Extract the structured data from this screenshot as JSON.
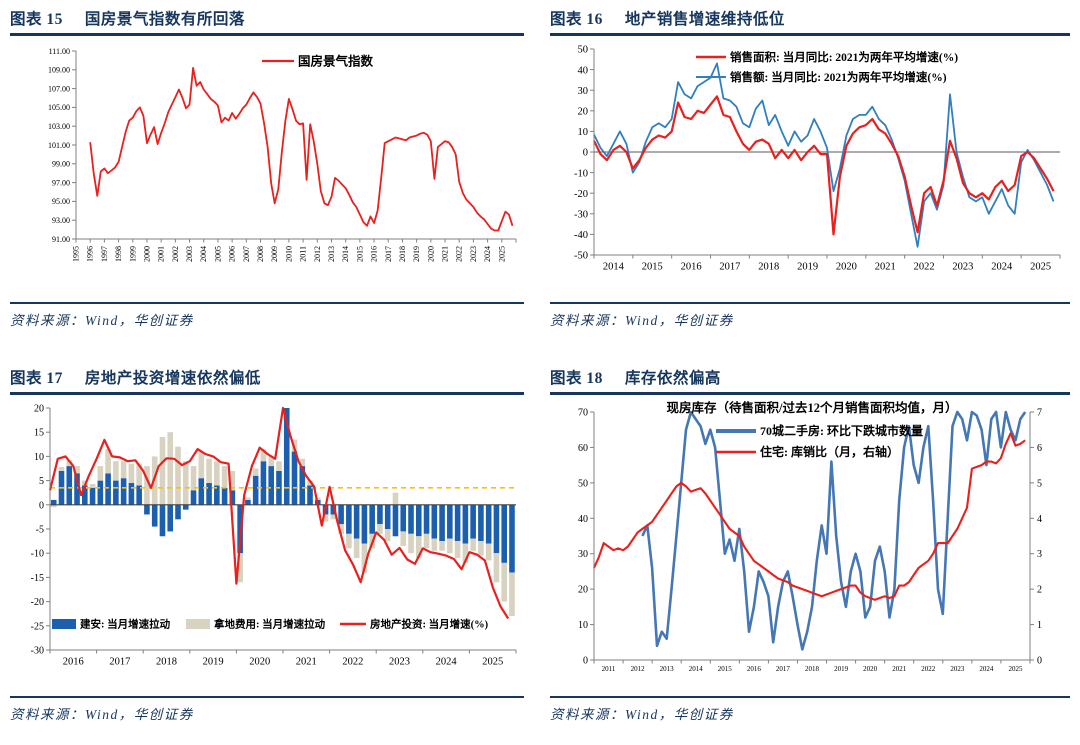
{
  "page_background": "#ffffff",
  "colors": {
    "navy": "#17365d",
    "red_line": "#e8201e",
    "sales_blue": "#2f7fc1",
    "bar_blue": "#1c5fae",
    "bar_beige": "#d8d2c0",
    "dash_orange": "#ffc000",
    "inventory_blue": "#4577b4",
    "axis_gray": "#808080",
    "zero_gray": "#595959"
  },
  "figures": [
    {
      "tag": "图表 15",
      "title": "国房景气指数有所回落",
      "source": "资料来源：Wind，华创证券"
    },
    {
      "tag": "图表 16",
      "title": "地产销售增速维持低位",
      "source": "资料来源：Wind，华创证券"
    },
    {
      "tag": "图表 17",
      "title": "房地产投资增速依然偏低",
      "source": "资料来源：Wind，华创证券"
    },
    {
      "tag": "图表 18",
      "title": "库存依然偏高",
      "source": "资料来源：Wind，华创证券"
    }
  ],
  "chart_data": [
    {
      "type": "line",
      "title": "国房景气指数有所回落",
      "xlabel": "",
      "ylabel": "",
      "ylim": [
        91,
        111
      ],
      "ytick_step": 2,
      "ytick_decimals": 2,
      "xlim": [
        1995,
        2026
      ],
      "xticks": [
        1995,
        1996,
        1997,
        1998,
        1999,
        2000,
        2001,
        2002,
        2003,
        2004,
        2005,
        2006,
        2007,
        2008,
        2009,
        2010,
        2011,
        2012,
        2013,
        2014,
        2015,
        2016,
        2017,
        2018,
        2019,
        2020,
        2021,
        2022,
        2023,
        2024,
        2025
      ],
      "x_start": 1996.0,
      "x_step": 0.25,
      "legend": [
        {
          "label": "国房景气指数",
          "color": "#e8201e"
        }
      ],
      "series": [
        {
          "name": "国房景气指数",
          "color": "#e8201e",
          "width": 1.8,
          "values": [
            101.3,
            98.0,
            95.6,
            98.2,
            98.5,
            98.0,
            98.3,
            98.6,
            99.2,
            100.8,
            102.4,
            103.6,
            103.9,
            104.6,
            105.0,
            104.1,
            101.2,
            102.1,
            102.9,
            101.1,
            102.3,
            103.3,
            104.5,
            105.3,
            106.1,
            106.9,
            106.0,
            104.9,
            105.3,
            109.2,
            107.3,
            107.7,
            106.9,
            106.4,
            105.9,
            105.6,
            105.2,
            103.4,
            103.9,
            103.6,
            104.4,
            103.8,
            104.3,
            104.9,
            105.3,
            106.0,
            106.6,
            106.1,
            105.4,
            103.3,
            100.8,
            96.9,
            94.8,
            96.3,
            100.2,
            103.6,
            105.9,
            104.8,
            103.6,
            103.2,
            103.3,
            97.3,
            103.2,
            101.4,
            99.0,
            96.1,
            94.8,
            94.6,
            95.5,
            97.5,
            97.2,
            96.8,
            96.4,
            95.7,
            94.9,
            94.4,
            93.6,
            92.8,
            92.4,
            93.4,
            92.7,
            94.0,
            97.5,
            101.2,
            101.4,
            101.6,
            101.8,
            101.7,
            101.6,
            101.5,
            101.8,
            101.9,
            102.0,
            102.2,
            102.3,
            102.1,
            101.4,
            97.4,
            100.8,
            101.1,
            101.4,
            101.3,
            100.8,
            100.0,
            97.1,
            95.9,
            95.2,
            94.8,
            94.4,
            93.8,
            93.4,
            93.1,
            92.6,
            92.1,
            91.9,
            91.9,
            92.9,
            93.9,
            93.6,
            92.4
          ]
        }
      ]
    },
    {
      "type": "line",
      "title": "地产销售增速维持低位",
      "ylim": [
        -50,
        50
      ],
      "ytick_step": 10,
      "ytick_decimals": 0,
      "xlim": [
        2014,
        2026
      ],
      "xticks": [
        2014,
        2015,
        2016,
        2017,
        2018,
        2019,
        2020,
        2021,
        2022,
        2023,
        2024,
        2025
      ],
      "x_start": 2014.0,
      "x_step": 0.16667,
      "zero_line": true,
      "legend": [
        {
          "label": "销售面积: 当月同比: 2021为两年平均增速(%)",
          "color": "#e8201e"
        },
        {
          "label": "销售额: 当月同比: 2021为两年平均增速(%)",
          "color": "#2f7fc1"
        }
      ],
      "series": [
        {
          "name": "销售面积: 当月同比: 2021为两年平均增速(%)",
          "color": "#e8201e",
          "width": 2.2,
          "values": [
            5.5,
            -1,
            -4,
            1,
            3,
            0,
            -8,
            -4,
            2,
            6,
            8,
            7,
            10,
            24,
            17,
            16,
            20,
            19,
            23,
            27,
            18,
            17,
            10,
            4,
            1,
            5,
            6,
            4,
            -3,
            1,
            -3,
            1,
            -4,
            0,
            3,
            -1,
            -1,
            -40,
            -12,
            3,
            9,
            12,
            13,
            16,
            11,
            9,
            4,
            -2,
            -12,
            -26,
            -39,
            -20,
            -17,
            -26,
            -14,
            5.5,
            -3,
            -15,
            -20,
            -22,
            -20,
            -23,
            -17,
            -14,
            -19,
            -16,
            -2,
            0,
            -3,
            -8,
            -13,
            -19
          ]
        },
        {
          "name": "销售额: 当月同比: 2021为两年平均增速(%)",
          "color": "#2f7fc1",
          "width": 1.8,
          "values": [
            8.5,
            2,
            -2,
            4,
            10,
            4,
            -10,
            -5,
            5,
            12,
            14,
            12,
            16,
            34,
            28,
            26,
            32,
            34,
            36,
            43,
            26,
            25,
            22,
            14,
            12,
            21,
            25,
            13,
            18,
            10,
            3,
            10,
            5,
            8,
            16,
            10,
            2,
            -19,
            -8,
            8,
            16,
            18,
            18,
            22,
            16,
            13,
            6,
            -3,
            -14,
            -30,
            -46,
            -24,
            -20,
            -28,
            -16,
            28,
            0,
            -12,
            -22,
            -24,
            -22,
            -30,
            -24,
            -18,
            -26,
            -30,
            -5,
            1,
            -4,
            -10,
            -16,
            -24
          ]
        }
      ]
    },
    {
      "type": "bar+line",
      "title": "房地产投资增速依然偏低",
      "ylim": [
        -30,
        20
      ],
      "ytick_step": 5,
      "ytick_decimals": 0,
      "xlim": [
        2016,
        2026
      ],
      "xticks": [
        2016,
        2017,
        2018,
        2019,
        2020,
        2021,
        2022,
        2023,
        2024,
        2025
      ],
      "x_start": 2016.0,
      "x_step": 0.16667,
      "zero_line": true,
      "dash_line": {
        "value": 3.5,
        "color": "#ffc000"
      },
      "legend": [
        {
          "label": "建安: 当月增速拉动",
          "color": "#1c5fae",
          "swatch": "rect"
        },
        {
          "label": "拿地费用: 当月增速拉动",
          "color": "#d8d2c0",
          "swatch": "rect"
        },
        {
          "label": "房地产投资: 当月增速(%)",
          "color": "#e8201e",
          "swatch": "line"
        }
      ],
      "bars": [
        {
          "name": "建安: 当月增速拉动",
          "color": "#1c5fae",
          "values": [
            1,
            7,
            8,
            6.5,
            4,
            3.5,
            5,
            6.5,
            5,
            5.5,
            4.5,
            4,
            -2,
            -4.5,
            -6.5,
            -5.5,
            -3,
            -1,
            3,
            5.5,
            4.5,
            4,
            3.5,
            3,
            -10,
            1,
            6,
            9,
            8,
            7,
            20,
            11,
            8,
            4,
            1,
            -2,
            -2,
            -4,
            -6,
            -7,
            -8,
            -6,
            -4,
            -5,
            -6.5,
            -5.5,
            -6,
            -6.5,
            -6,
            -7,
            -7.5,
            -7,
            -7.5,
            -8,
            -7,
            -7.5,
            -8,
            -10,
            -12,
            -14
          ]
        },
        {
          "name": "拿地费用: 当月增速拉动",
          "color": "#d8d2c0",
          "values": [
            -0.5,
            0.8,
            1.2,
            1.5,
            1,
            0.8,
            3,
            5,
            4,
            3.5,
            4,
            4.5,
            8,
            10,
            14,
            15,
            12,
            9,
            5,
            5.5,
            5,
            5,
            4.5,
            4,
            -6,
            0.5,
            1.5,
            2.5,
            2,
            2,
            2,
            2.5,
            1.5,
            1,
            0.5,
            -1.5,
            -1,
            -2,
            -3,
            -4,
            -6,
            -3,
            -2,
            -2.5,
            2.5,
            -3,
            -4,
            -4.5,
            -3,
            -2.5,
            -2,
            -3,
            -3.5,
            -4,
            -2.5,
            -3,
            -3.5,
            -6,
            -8,
            -9
          ]
        }
      ],
      "series": [
        {
          "name": "房地产投资: 当月增速(%)",
          "color": "#e8201e",
          "width": 2.2,
          "values": [
            3,
            9.5,
            10,
            8,
            2,
            6,
            9.5,
            13.4,
            10,
            9.8,
            9,
            9.2,
            7,
            3.5,
            8,
            9.6,
            9.5,
            8.2,
            9,
            11.5,
            10.5,
            10,
            8.8,
            8.5,
            -16.3,
            2,
            8,
            11.8,
            10.5,
            9.5,
            21,
            14,
            9,
            5.9,
            3.8,
            -4.3,
            3.7,
            -3.5,
            -9.4,
            -12.3,
            -16,
            -10,
            -5.7,
            -7.2,
            -10.3,
            -8.9,
            -11.3,
            -12.2,
            -9,
            -9.8,
            -10.1,
            -10.5,
            -11.2,
            -13.3,
            -9.8,
            -10.3,
            -11.5,
            -17,
            -21,
            -23.5
          ]
        }
      ]
    },
    {
      "type": "dual-line",
      "title": "库存依然偏高",
      "inner_title": "现房库存（待售面积/过去12个月销售面积均值，月）",
      "ylim_left": [
        0,
        70
      ],
      "ytick_step_left": 10,
      "ylim_right": [
        0,
        7
      ],
      "ytick_step_right": 1,
      "xlim": [
        2011,
        2026
      ],
      "xticks": [
        2011,
        2012,
        2013,
        2014,
        2015,
        2016,
        2017,
        2018,
        2019,
        2020,
        2021,
        2022,
        2023,
        2024,
        2025
      ],
      "x_start": 2011.0,
      "x_step": 0.16667,
      "legend": [
        {
          "label": "70城二手房: 环比下跌城市数量",
          "color": "#4577b4",
          "thick": 4
        },
        {
          "label": "住宅: 库销比（月，右轴）",
          "color": "#e8201e",
          "thick": 2.5
        }
      ],
      "series": [
        {
          "name": "70城二手房: 环比下跌城市数量",
          "axis": "left",
          "color": "#4577b4",
          "width": 2.6,
          "values": [
            null,
            null,
            null,
            null,
            null,
            null,
            null,
            null,
            null,
            null,
            35,
            38,
            26,
            4,
            8,
            6,
            20,
            35,
            50,
            65,
            70,
            68,
            66,
            61,
            65,
            60,
            45,
            30,
            34,
            28,
            37,
            25,
            8,
            15,
            25,
            22,
            18,
            5,
            15,
            22,
            25,
            18,
            10,
            3,
            8,
            15,
            28,
            38,
            30,
            56,
            35,
            22,
            15,
            25,
            30,
            25,
            12,
            15,
            28,
            32,
            25,
            12,
            20,
            45,
            60,
            66,
            55,
            50,
            60,
            66,
            45,
            20,
            13,
            40,
            66,
            70,
            68,
            62,
            70,
            69,
            65,
            55,
            68,
            70,
            60,
            70,
            65,
            62,
            68,
            70
          ]
        },
        {
          "name": "住宅: 库销比（月，右轴）",
          "axis": "right",
          "color": "#e8201e",
          "width": 2.1,
          "values": [
            2.6,
            2.9,
            3.3,
            3.2,
            3.1,
            3.15,
            3.1,
            3.2,
            3.4,
            3.6,
            3.7,
            3.8,
            3.9,
            4.1,
            4.3,
            4.5,
            4.7,
            4.9,
            5.0,
            4.9,
            4.75,
            4.8,
            4.85,
            4.7,
            4.5,
            4.3,
            4.1,
            3.9,
            3.7,
            3.6,
            3.5,
            3.2,
            3.0,
            2.8,
            2.7,
            2.6,
            2.5,
            2.4,
            2.3,
            2.25,
            2.2,
            2.1,
            2.05,
            2.0,
            1.95,
            1.9,
            1.85,
            1.8,
            1.85,
            1.9,
            1.95,
            2.0,
            2.05,
            2.1,
            2.1,
            1.9,
            1.8,
            1.75,
            1.7,
            1.75,
            1.8,
            1.75,
            1.8,
            2.1,
            2.1,
            2.2,
            2.4,
            2.6,
            2.7,
            2.8,
            3.0,
            3.3,
            3.3,
            3.3,
            3.5,
            3.7,
            4.0,
            4.3,
            5.4,
            5.45,
            5.5,
            5.6,
            5.6,
            5.55,
            5.7,
            6.1,
            6.4,
            6.05,
            6.1,
            6.2
          ]
        }
      ]
    }
  ]
}
